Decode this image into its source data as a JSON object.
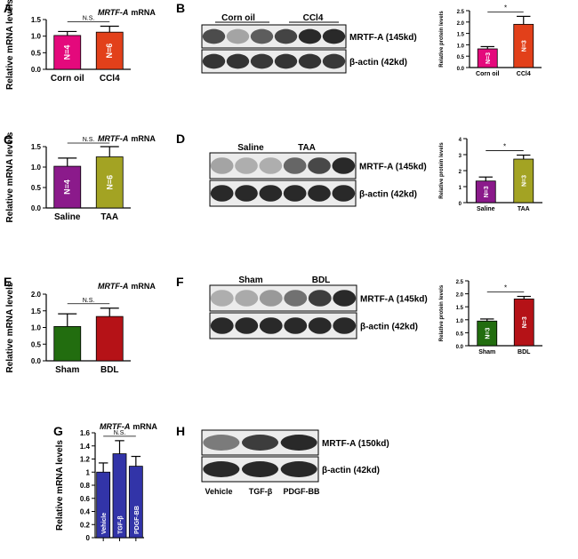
{
  "panels": [
    {
      "letter": "A",
      "kind": "bar",
      "title_gene": "MRTF-A",
      "title_suffix": "mRNA",
      "ylabel": "Relative mRNA levels",
      "ylim": [
        0,
        1.5
      ],
      "yticks": [
        "0.0",
        "0.5",
        "1.0",
        "1.5"
      ],
      "categories": [
        "Corn oil",
        "CCl4"
      ],
      "values": [
        1.02,
        1.12
      ],
      "errors": [
        0.12,
        0.18
      ],
      "colors": [
        "#e4097c",
        "#e2401a"
      ],
      "inbar": [
        "N=4",
        "N=6"
      ],
      "sig": "N.S."
    },
    {
      "letter": "C",
      "kind": "bar",
      "title_gene": "MRTF-A",
      "title_suffix": "mRNA",
      "ylabel": "Relative mRNA levels",
      "ylim": [
        0,
        1.5
      ],
      "yticks": [
        "0.0",
        "0.5",
        "1.0",
        "1.5"
      ],
      "categories": [
        "Saline",
        "TAA"
      ],
      "values": [
        1.02,
        1.25
      ],
      "errors": [
        0.2,
        0.25
      ],
      "colors": [
        "#8b1a8b",
        "#a3a323"
      ],
      "inbar": [
        "N=4",
        "N=6"
      ],
      "sig": "N.S."
    },
    {
      "letter": "E",
      "kind": "bar",
      "title_gene": "MRTF-A",
      "title_suffix": "mRNA",
      "ylabel": "Relative mRNA levels",
      "ylim": [
        0,
        2.0
      ],
      "yticks": [
        "0.0",
        "0.5",
        "1.0",
        "1.5",
        "2.0"
      ],
      "categories": [
        "Sham",
        "BDL"
      ],
      "values": [
        1.03,
        1.33
      ],
      "errors": [
        0.38,
        0.25
      ],
      "colors": [
        "#226d0f",
        "#b51217"
      ],
      "inbar": [
        "",
        ""
      ],
      "sig": "N.S."
    },
    {
      "letter": "G",
      "kind": "bar",
      "title_gene": "MRTF-A",
      "title_suffix": "mRNA",
      "ylabel": "Relative mRNA levels",
      "ylim": [
        0,
        1.6
      ],
      "yticks": [
        "0",
        "0.2",
        "0.4",
        "0.6",
        "0.8",
        "1",
        "1.2",
        "1.4",
        "1.6"
      ],
      "categories": [
        "Vehicle",
        "TGF-β",
        "PDGF-BB"
      ],
      "values": [
        1.0,
        1.28,
        1.09
      ],
      "errors": [
        0.14,
        0.2,
        0.15
      ],
      "colors": [
        "#3234a8",
        "#3234a8",
        "#3234a8"
      ],
      "inbar": [
        "Vehicle",
        "TGF-β",
        "PDGF-BB"
      ],
      "sig": "N.S.",
      "cat_inside": true
    },
    {
      "letter": "B",
      "kind": "bar",
      "title_gene": "",
      "title_suffix": "",
      "ylabel": "Relative protein levels",
      "ylim": [
        0,
        2.5
      ],
      "yticks": [
        "0.0",
        "0.5",
        "1.0",
        "1.5",
        "2.0",
        "2.5"
      ],
      "categories": [
        "Corn oil",
        "CCl4"
      ],
      "values": [
        0.82,
        1.9
      ],
      "errors": [
        0.1,
        0.35
      ],
      "colors": [
        "#e4097c",
        "#e2401a"
      ],
      "inbar": [
        "N=3",
        "N=3"
      ],
      "sig": "*"
    },
    {
      "letter": "D",
      "kind": "bar",
      "title_gene": "",
      "title_suffix": "",
      "ylabel": "Relative protein levels",
      "ylim": [
        0,
        4
      ],
      "yticks": [
        "0",
        "1",
        "2",
        "3",
        "4"
      ],
      "categories": [
        "Saline",
        "TAA"
      ],
      "values": [
        1.35,
        2.72
      ],
      "errors": [
        0.25,
        0.25
      ],
      "colors": [
        "#8b1a8b",
        "#a3a323"
      ],
      "inbar": [
        "N=3",
        "N=3"
      ],
      "sig": "*"
    },
    {
      "letter": "F",
      "kind": "bar",
      "title_gene": "",
      "title_suffix": "",
      "ylabel": "Relative protein levels",
      "ylim": [
        0,
        2.5
      ],
      "yticks": [
        "0.0",
        "0.5",
        "1.0",
        "1.5",
        "2.0",
        "2.5"
      ],
      "categories": [
        "Sham",
        "BDL"
      ],
      "values": [
        0.95,
        1.8
      ],
      "errors": [
        0.08,
        0.1
      ],
      "colors": [
        "#226d0f",
        "#b51217"
      ],
      "inbar": [
        "N=3",
        "N=3"
      ],
      "sig": "*"
    }
  ],
  "blots": [
    {
      "letter": "B",
      "groups": [
        "Corn oil",
        "CCl4"
      ],
      "band_labels": [
        "MRTF-A (145kd)",
        "β-actin (42kd)"
      ],
      "target_intensity": [
        0.78,
        0.35,
        0.7,
        0.82,
        0.95,
        0.95
      ],
      "actin_intensity": [
        0.9,
        0.9,
        0.88,
        0.9,
        0.9,
        0.88
      ]
    },
    {
      "letter": "D",
      "groups": [
        "Saline",
        "TAA"
      ],
      "band_labels": [
        "MRTF-A (145kd)",
        "β-actin (42kd)"
      ],
      "target_intensity": [
        0.35,
        0.3,
        0.3,
        0.65,
        0.8,
        0.95
      ],
      "actin_intensity": [
        0.95,
        0.95,
        0.95,
        0.95,
        0.95,
        0.95
      ]
    },
    {
      "letter": "F",
      "groups": [
        "Sham",
        "BDL"
      ],
      "band_labels": [
        "MRTF-A (145kd)",
        "β-actin (42kd)"
      ],
      "target_intensity": [
        0.3,
        0.32,
        0.4,
        0.6,
        0.85,
        0.95
      ],
      "actin_intensity": [
        0.95,
        0.95,
        0.95,
        0.95,
        0.95,
        0.95
      ]
    },
    {
      "letter": "H",
      "groups": [],
      "lanes": [
        "Vehicle",
        "TGF-β",
        "PDGF-BB"
      ],
      "band_labels": [
        "MRTF-A (150kd)",
        "β-actin (42kd)"
      ],
      "target_intensity": [
        0.55,
        0.85,
        0.95
      ],
      "actin_intensity": [
        0.95,
        0.95,
        0.95
      ]
    }
  ],
  "chart_data": [
    {
      "type": "bar",
      "panel": "A",
      "title": "MRTF-A mRNA",
      "ylabel": "Relative mRNA levels",
      "categories": [
        "Corn oil",
        "CCl4"
      ],
      "values": [
        1.02,
        1.12
      ],
      "errors": [
        0.12,
        0.18
      ],
      "n": [
        "N=4",
        "N=6"
      ],
      "significance": "N.S.",
      "ylim": [
        0,
        1.5
      ]
    },
    {
      "type": "bar",
      "panel": "B",
      "title": "",
      "ylabel": "Relative protein levels",
      "categories": [
        "Corn oil",
        "CCl4"
      ],
      "values": [
        0.82,
        1.9
      ],
      "errors": [
        0.1,
        0.35
      ],
      "n": [
        "N=3",
        "N=3"
      ],
      "significance": "*",
      "ylim": [
        0,
        2.5
      ]
    },
    {
      "type": "bar",
      "panel": "C",
      "title": "MRTF-A mRNA",
      "ylabel": "Relative mRNA levels",
      "categories": [
        "Saline",
        "TAA"
      ],
      "values": [
        1.02,
        1.25
      ],
      "errors": [
        0.2,
        0.25
      ],
      "n": [
        "N=4",
        "N=6"
      ],
      "significance": "N.S.",
      "ylim": [
        0,
        1.5
      ]
    },
    {
      "type": "bar",
      "panel": "D",
      "title": "",
      "ylabel": "Relative protein levels",
      "categories": [
        "Saline",
        "TAA"
      ],
      "values": [
        1.35,
        2.72
      ],
      "errors": [
        0.25,
        0.25
      ],
      "n": [
        "N=3",
        "N=3"
      ],
      "significance": "*",
      "ylim": [
        0,
        4
      ]
    },
    {
      "type": "bar",
      "panel": "E",
      "title": "MRTF-A mRNA",
      "ylabel": "Relative mRNA levels",
      "categories": [
        "Sham",
        "BDL"
      ],
      "values": [
        1.03,
        1.33
      ],
      "errors": [
        0.38,
        0.25
      ],
      "significance": "N.S.",
      "ylim": [
        0,
        2.0
      ]
    },
    {
      "type": "bar",
      "panel": "F",
      "title": "",
      "ylabel": "Relative protein levels",
      "categories": [
        "Sham",
        "BDL"
      ],
      "values": [
        0.95,
        1.8
      ],
      "errors": [
        0.08,
        0.1
      ],
      "n": [
        "N=3",
        "N=3"
      ],
      "significance": "*",
      "ylim": [
        0,
        2.5
      ]
    },
    {
      "type": "bar",
      "panel": "G",
      "title": "MRTF-A mRNA",
      "ylabel": "Relative mRNA levels",
      "categories": [
        "Vehicle",
        "TGF-β",
        "PDGF-BB"
      ],
      "values": [
        1.0,
        1.28,
        1.09
      ],
      "errors": [
        0.14,
        0.2,
        0.15
      ],
      "significance": "N.S.",
      "ylim": [
        0,
        1.6
      ]
    }
  ]
}
